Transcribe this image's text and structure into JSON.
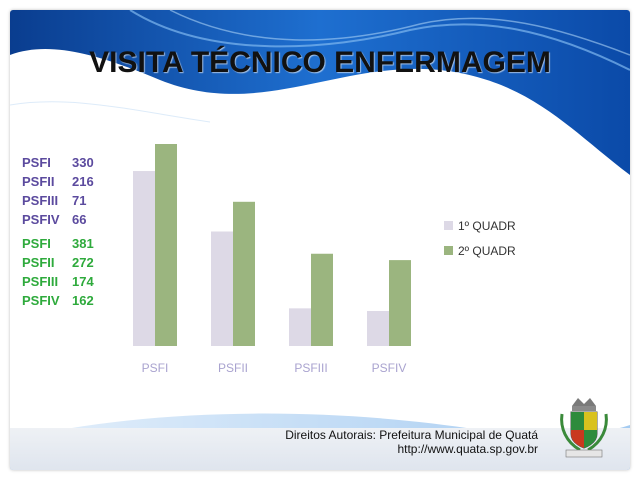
{
  "title": "VISITA TÉCNICO ENFERMAGEM",
  "stats_q1": [
    {
      "name": "PSFI",
      "value": "330"
    },
    {
      "name": "PSFII",
      "value": "216"
    },
    {
      "name": "PSFIII",
      "value": "71"
    },
    {
      "name": "PSFIV",
      "value": "66"
    }
  ],
  "stats_q2": [
    {
      "name": "PSFI",
      "value": "381"
    },
    {
      "name": "PSFII",
      "value": "272"
    },
    {
      "name": "PSFIII",
      "value": "174"
    },
    {
      "name": "PSFIV",
      "value": "162"
    }
  ],
  "footer": {
    "line1": "Direitos Autorais: Prefeitura Municipal de Quatá",
    "line2": "http://www.quata.sp.gov.br"
  },
  "colors": {
    "series1": "#ddd9e6",
    "series2": "#9bb57f",
    "q1_text": "#5b4a9e",
    "q2_text": "#2eaa3c",
    "category_text": "#a9a3cf"
  },
  "chart_data": {
    "type": "bar",
    "title": "",
    "categories": [
      "PSFI",
      "PSFII",
      "PSFIII",
      "PSFIV"
    ],
    "series": [
      {
        "name": "1º QUADR",
        "values": [
          330,
          216,
          71,
          66
        ]
      },
      {
        "name": "2º QUADR",
        "values": [
          381,
          272,
          174,
          162
        ]
      }
    ],
    "ylim": [
      0,
      381
    ],
    "legend": "right",
    "grid": false
  }
}
